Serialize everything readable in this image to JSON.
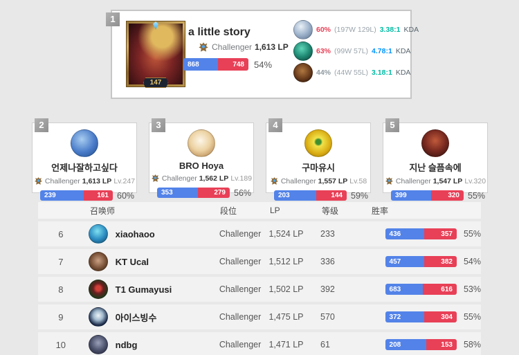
{
  "colors": {
    "win_blue": "#5383e8",
    "loss_red": "#e84057",
    "winrate_red": "#e84057",
    "winrate_grey": "#8f9aa0",
    "kda_teal": "#00bba3",
    "kda_blue": "#0093ff"
  },
  "icons": {
    "tier_crest": "challenger-crest",
    "profile_frame": "gold-ornate-frame"
  },
  "top_player": {
    "rank": "1",
    "name": "a little story",
    "tier": "Challenger",
    "lp": "1,613 LP",
    "level": "147",
    "wins": "868",
    "losses": "748",
    "winrate": "54%",
    "champions": [
      {
        "winrate": "60%",
        "winrate_color": "#e84057",
        "record": "(197W 129L)",
        "kda": "3.38:1",
        "kda_color": "#00bba3",
        "kda_label": "KDA"
      },
      {
        "winrate": "63%",
        "winrate_color": "#e84057",
        "record": "(99W 57L)",
        "kda": "4.78:1",
        "kda_color": "#0093ff",
        "kda_label": "KDA"
      },
      {
        "winrate": "44%",
        "winrate_color": "#8f9aa0",
        "record": "(44W 55L)",
        "kda": "3.18:1",
        "kda_color": "#00bba3",
        "kda_label": "KDA"
      }
    ]
  },
  "cards": [
    {
      "rank": "2",
      "name": "언제나잘하고싶다",
      "tier": "Challenger",
      "lp": "1,613 LP",
      "level": "Lv.247",
      "wins": "239",
      "losses": "161",
      "winrate": "60%"
    },
    {
      "rank": "3",
      "name": "BRO Hoya",
      "tier": "Challenger",
      "lp": "1,562 LP",
      "level": "Lv.189",
      "wins": "353",
      "losses": "279",
      "winrate": "56%"
    },
    {
      "rank": "4",
      "name": "구마유시",
      "tier": "Challenger",
      "lp": "1,557 LP",
      "level": "Lv.58",
      "wins": "203",
      "losses": "144",
      "winrate": "59%"
    },
    {
      "rank": "5",
      "name": "지난 슬픔속에",
      "tier": "Challenger",
      "lp": "1,547 LP",
      "level": "Lv.320",
      "wins": "399",
      "losses": "320",
      "winrate": "55%"
    }
  ],
  "table": {
    "headers": {
      "summoner": "召唤师",
      "tier": "段位",
      "lp": "LP",
      "level": "等级",
      "winrate": "胜率"
    },
    "rows": [
      {
        "rank": "6",
        "name": "xiaohaoo",
        "tier": "Challenger",
        "lp": "1,524 LP",
        "level": "233",
        "wins": "436",
        "losses": "357",
        "winrate": "55%"
      },
      {
        "rank": "7",
        "name": "KT Ucal",
        "tier": "Challenger",
        "lp": "1,512 LP",
        "level": "336",
        "wins": "457",
        "losses": "382",
        "winrate": "54%"
      },
      {
        "rank": "8",
        "name": "T1 Gumayusi",
        "tier": "Challenger",
        "lp": "1,502 LP",
        "level": "392",
        "wins": "683",
        "losses": "616",
        "winrate": "53%"
      },
      {
        "rank": "9",
        "name": "아이스빙수",
        "tier": "Challenger",
        "lp": "1,475 LP",
        "level": "570",
        "wins": "372",
        "losses": "304",
        "winrate": "55%"
      },
      {
        "rank": "10",
        "name": "ndbg",
        "tier": "Challenger",
        "lp": "1,471 LP",
        "level": "61",
        "wins": "208",
        "losses": "153",
        "winrate": "58%"
      }
    ]
  }
}
